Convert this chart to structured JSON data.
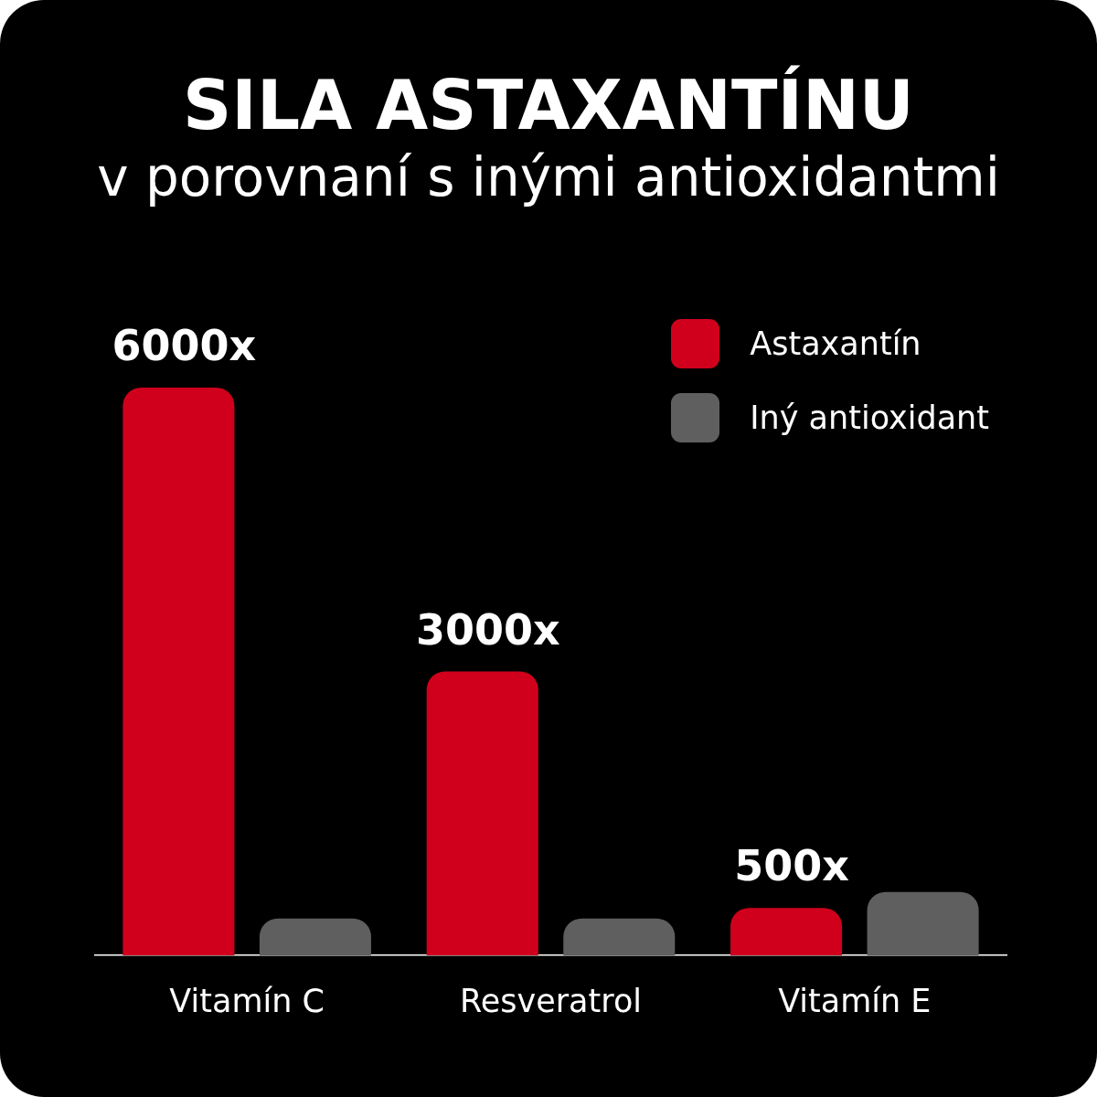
{
  "chart_data": {
    "type": "bar",
    "title": "SILA ASTAXANTÍNU",
    "subtitle": "v porovnaní s inými antioxidantmi",
    "categories": [
      "Vitamín C",
      "Resveratrol",
      "Vitamín E"
    ],
    "tick_labels": "x",
    "legend": "top right",
    "series": [
      {
        "name": "Astaxantín",
        "color": "#d0001c",
        "values": [
          6000,
          3000,
          500
        ],
        "value_labels": [
          "6000x",
          "3000x",
          "500x"
        ]
      },
      {
        "name": "Iný antioxidant",
        "color": "#5f5f5f",
        "values": [
          390,
          390,
          670
        ]
      }
    ]
  }
}
